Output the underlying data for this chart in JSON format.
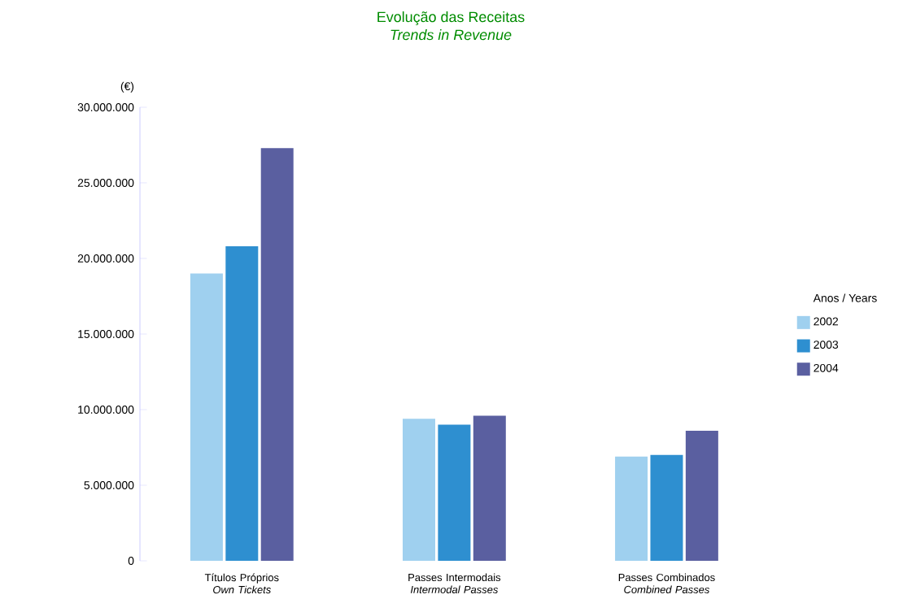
{
  "chart_data": {
    "type": "bar",
    "title": "Evolução das Receitas",
    "subtitle": "*Trends in Revenue*",
    "ylabel": "(€)",
    "legend_title": "Anos / Years",
    "categories": [
      "Títulos Próprios *Own Tickets*",
      "Passes Intermodais *Intermodal Passes*",
      "Passes Combinados *Combined Passes*"
    ],
    "series": [
      {
        "name": "2002",
        "color": "#9fd0ef",
        "values": [
          19000000,
          9400000,
          6900000
        ]
      },
      {
        "name": "2003",
        "color": "#2e8fd0",
        "values": [
          20800000,
          9000000,
          7000000
        ]
      },
      {
        "name": "2004",
        "color": "#5a5fa0",
        "values": [
          27300000,
          9600000,
          8600000
        ]
      }
    ],
    "ylim": [
      0,
      30000000
    ],
    "yticks": [
      {
        "value": 0,
        "label": "0"
      },
      {
        "value": 5000000,
        "label": "5.000.000"
      },
      {
        "value": 10000000,
        "label": "10.000.000"
      },
      {
        "value": 15000000,
        "label": "15.000.000"
      },
      {
        "value": 20000000,
        "label": "20.000.000"
      },
      {
        "value": 25000000,
        "label": "25.000.000"
      },
      {
        "value": 30000000,
        "label": "30.000.000"
      }
    ],
    "grid": false,
    "legend": "right"
  }
}
